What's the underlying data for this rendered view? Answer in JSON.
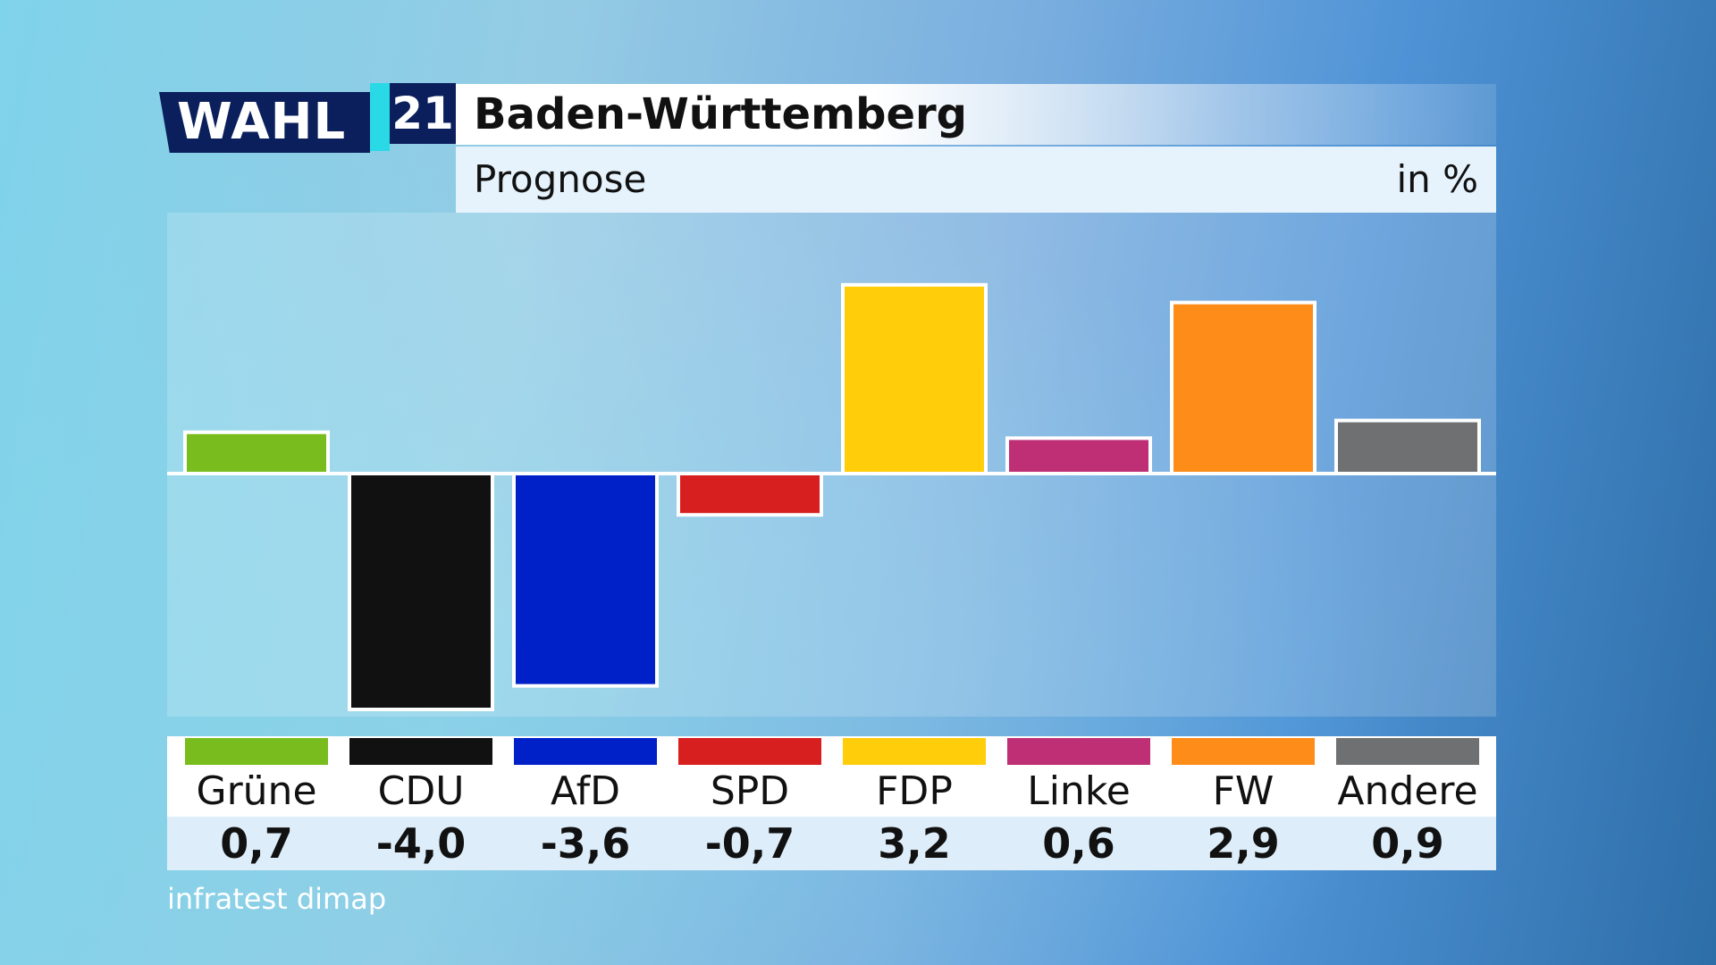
{
  "logo": {
    "word": "WAHL",
    "year": "21"
  },
  "header": {
    "title": "Baden-Württemberg",
    "subtitle": "Prognose",
    "unit": "in %"
  },
  "source": "infratest dimap",
  "chart_data": {
    "type": "bar",
    "title": "Baden-Württemberg",
    "subtitle": "Prognose",
    "ylabel": "in %",
    "categories": [
      "Grüne",
      "CDU",
      "AfD",
      "SPD",
      "FDP",
      "Linke",
      "FW",
      "Andere"
    ],
    "values": [
      0.7,
      -4.0,
      -3.6,
      -0.7,
      3.2,
      0.6,
      2.9,
      0.9
    ],
    "value_labels": [
      "0,7",
      "-4,0",
      "-3,6",
      "-0,7",
      "3,2",
      "0,6",
      "2,9",
      "0,9"
    ],
    "colors": [
      "#78bc1e",
      "#111111",
      "#0020c8",
      "#d71f1f",
      "#ffcd0a",
      "#be2f76",
      "#fd8c18",
      "#6f7071"
    ],
    "ylim": [
      -4.1,
      3.2
    ],
    "grid": false,
    "legend": "bottom"
  }
}
